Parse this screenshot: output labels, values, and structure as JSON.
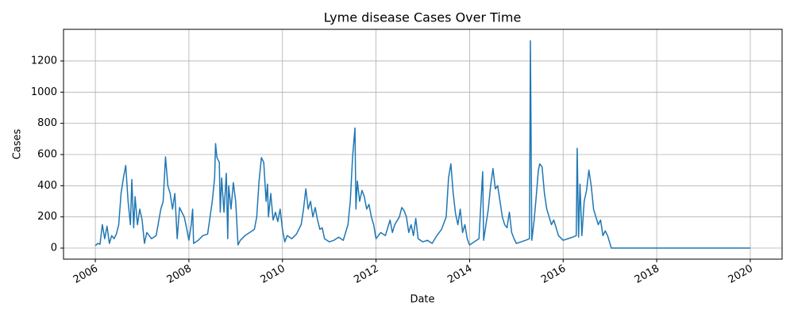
{
  "chart_data": {
    "type": "line",
    "title": "Lyme disease Cases Over Time",
    "xlabel": "Date",
    "ylabel": "Cases",
    "color": "#1f77b4",
    "grid": true,
    "xlim": [
      2005.32,
      2020.68
    ],
    "xticks": [
      2006,
      2008,
      2010,
      2012,
      2014,
      2016,
      2018,
      2020
    ],
    "ylim": [
      -71,
      1403
    ],
    "yticks": [
      0,
      200,
      400,
      600,
      800,
      1000,
      1200
    ],
    "x": [
      2006.0,
      2006.05,
      2006.1,
      2006.15,
      2006.2,
      2006.25,
      2006.3,
      2006.35,
      2006.4,
      2006.45,
      2006.5,
      2006.55,
      2006.6,
      2006.65,
      2006.7,
      2006.75,
      2006.78,
      2006.82,
      2006.85,
      2006.9,
      2006.95,
      2007.0,
      2007.05,
      2007.1,
      2007.2,
      2007.3,
      2007.4,
      2007.45,
      2007.5,
      2007.55,
      2007.6,
      2007.65,
      2007.7,
      2007.75,
      2007.8,
      2007.85,
      2007.9,
      2007.95,
      2008.0,
      2008.05,
      2008.08,
      2008.1,
      2008.2,
      2008.3,
      2008.4,
      2008.5,
      2008.55,
      2008.57,
      2008.6,
      2008.65,
      2008.67,
      2008.7,
      2008.75,
      2008.8,
      2008.83,
      2008.85,
      2008.9,
      2008.95,
      2009.0,
      2009.05,
      2009.1,
      2009.2,
      2009.3,
      2009.4,
      2009.45,
      2009.5,
      2009.55,
      2009.6,
      2009.65,
      2009.68,
      2009.7,
      2009.75,
      2009.8,
      2009.85,
      2009.9,
      2009.95,
      2010.0,
      2010.05,
      2010.1,
      2010.2,
      2010.3,
      2010.4,
      2010.45,
      2010.5,
      2010.55,
      2010.6,
      2010.65,
      2010.7,
      2010.75,
      2010.8,
      2010.85,
      2010.9,
      2011.0,
      2011.1,
      2011.2,
      2011.3,
      2011.4,
      2011.45,
      2011.5,
      2011.55,
      2011.57,
      2011.6,
      2011.65,
      2011.7,
      2011.75,
      2011.8,
      2011.85,
      2011.9,
      2011.95,
      2012.0,
      2012.1,
      2012.2,
      2012.3,
      2012.35,
      2012.4,
      2012.5,
      2012.55,
      2012.6,
      2012.65,
      2012.7,
      2012.75,
      2012.8,
      2012.85,
      2012.9,
      2013.0,
      2013.1,
      2013.2,
      2013.3,
      2013.4,
      2013.5,
      2013.55,
      2013.6,
      2013.65,
      2013.7,
      2013.75,
      2013.8,
      2013.85,
      2013.9,
      2013.95,
      2014.0,
      2014.1,
      2014.2,
      2014.28,
      2014.3,
      2014.35,
      2014.4,
      2014.45,
      2014.5,
      2014.55,
      2014.6,
      2014.65,
      2014.7,
      2014.75,
      2014.8,
      2014.85,
      2014.9,
      2014.95,
      2015.0,
      2015.1,
      2015.2,
      2015.28,
      2015.3,
      2015.33,
      2015.38,
      2015.43,
      2015.47,
      2015.5,
      2015.55,
      2015.6,
      2015.65,
      2015.7,
      2015.75,
      2015.8,
      2015.85,
      2015.9,
      2016.0,
      2016.1,
      2016.2,
      2016.28,
      2016.3,
      2016.33,
      2016.36,
      2016.4,
      2016.45,
      2016.5,
      2016.55,
      2016.6,
      2016.65,
      2016.7,
      2016.75,
      2016.8,
      2016.85,
      2016.9,
      2016.95,
      2017.03,
      2020.0
    ],
    "values": [
      15,
      30,
      25,
      150,
      60,
      140,
      30,
      80,
      60,
      90,
      150,
      350,
      450,
      530,
      300,
      150,
      440,
      130,
      330,
      150,
      250,
      180,
      30,
      100,
      60,
      80,
      250,
      300,
      585,
      400,
      350,
      250,
      350,
      60,
      260,
      230,
      200,
      130,
      50,
      150,
      250,
      30,
      50,
      80,
      90,
      300,
      450,
      670,
      580,
      550,
      230,
      450,
      230,
      480,
      60,
      400,
      250,
      420,
      300,
      20,
      50,
      80,
      100,
      120,
      200,
      430,
      580,
      550,
      300,
      410,
      200,
      350,
      180,
      230,
      170,
      250,
      120,
      40,
      80,
      60,
      90,
      150,
      250,
      380,
      250,
      300,
      200,
      260,
      180,
      120,
      130,
      60,
      40,
      50,
      70,
      50,
      150,
      300,
      590,
      770,
      250,
      430,
      300,
      370,
      330,
      250,
      280,
      200,
      150,
      60,
      100,
      80,
      180,
      100,
      150,
      200,
      260,
      240,
      200,
      100,
      150,
      80,
      190,
      60,
      40,
      50,
      30,
      80,
      120,
      200,
      450,
      540,
      350,
      220,
      150,
      250,
      100,
      150,
      60,
      20,
      40,
      60,
      490,
      50,
      150,
      250,
      400,
      510,
      380,
      400,
      300,
      200,
      150,
      130,
      230,
      100,
      60,
      30,
      40,
      50,
      60,
      1330,
      50,
      180,
      350,
      500,
      540,
      520,
      350,
      250,
      200,
      150,
      180,
      130,
      80,
      50,
      60,
      70,
      80,
      640,
      70,
      410,
      80,
      300,
      370,
      500,
      400,
      250,
      200,
      150,
      180,
      80,
      110,
      80,
      0,
      0
    ]
  }
}
